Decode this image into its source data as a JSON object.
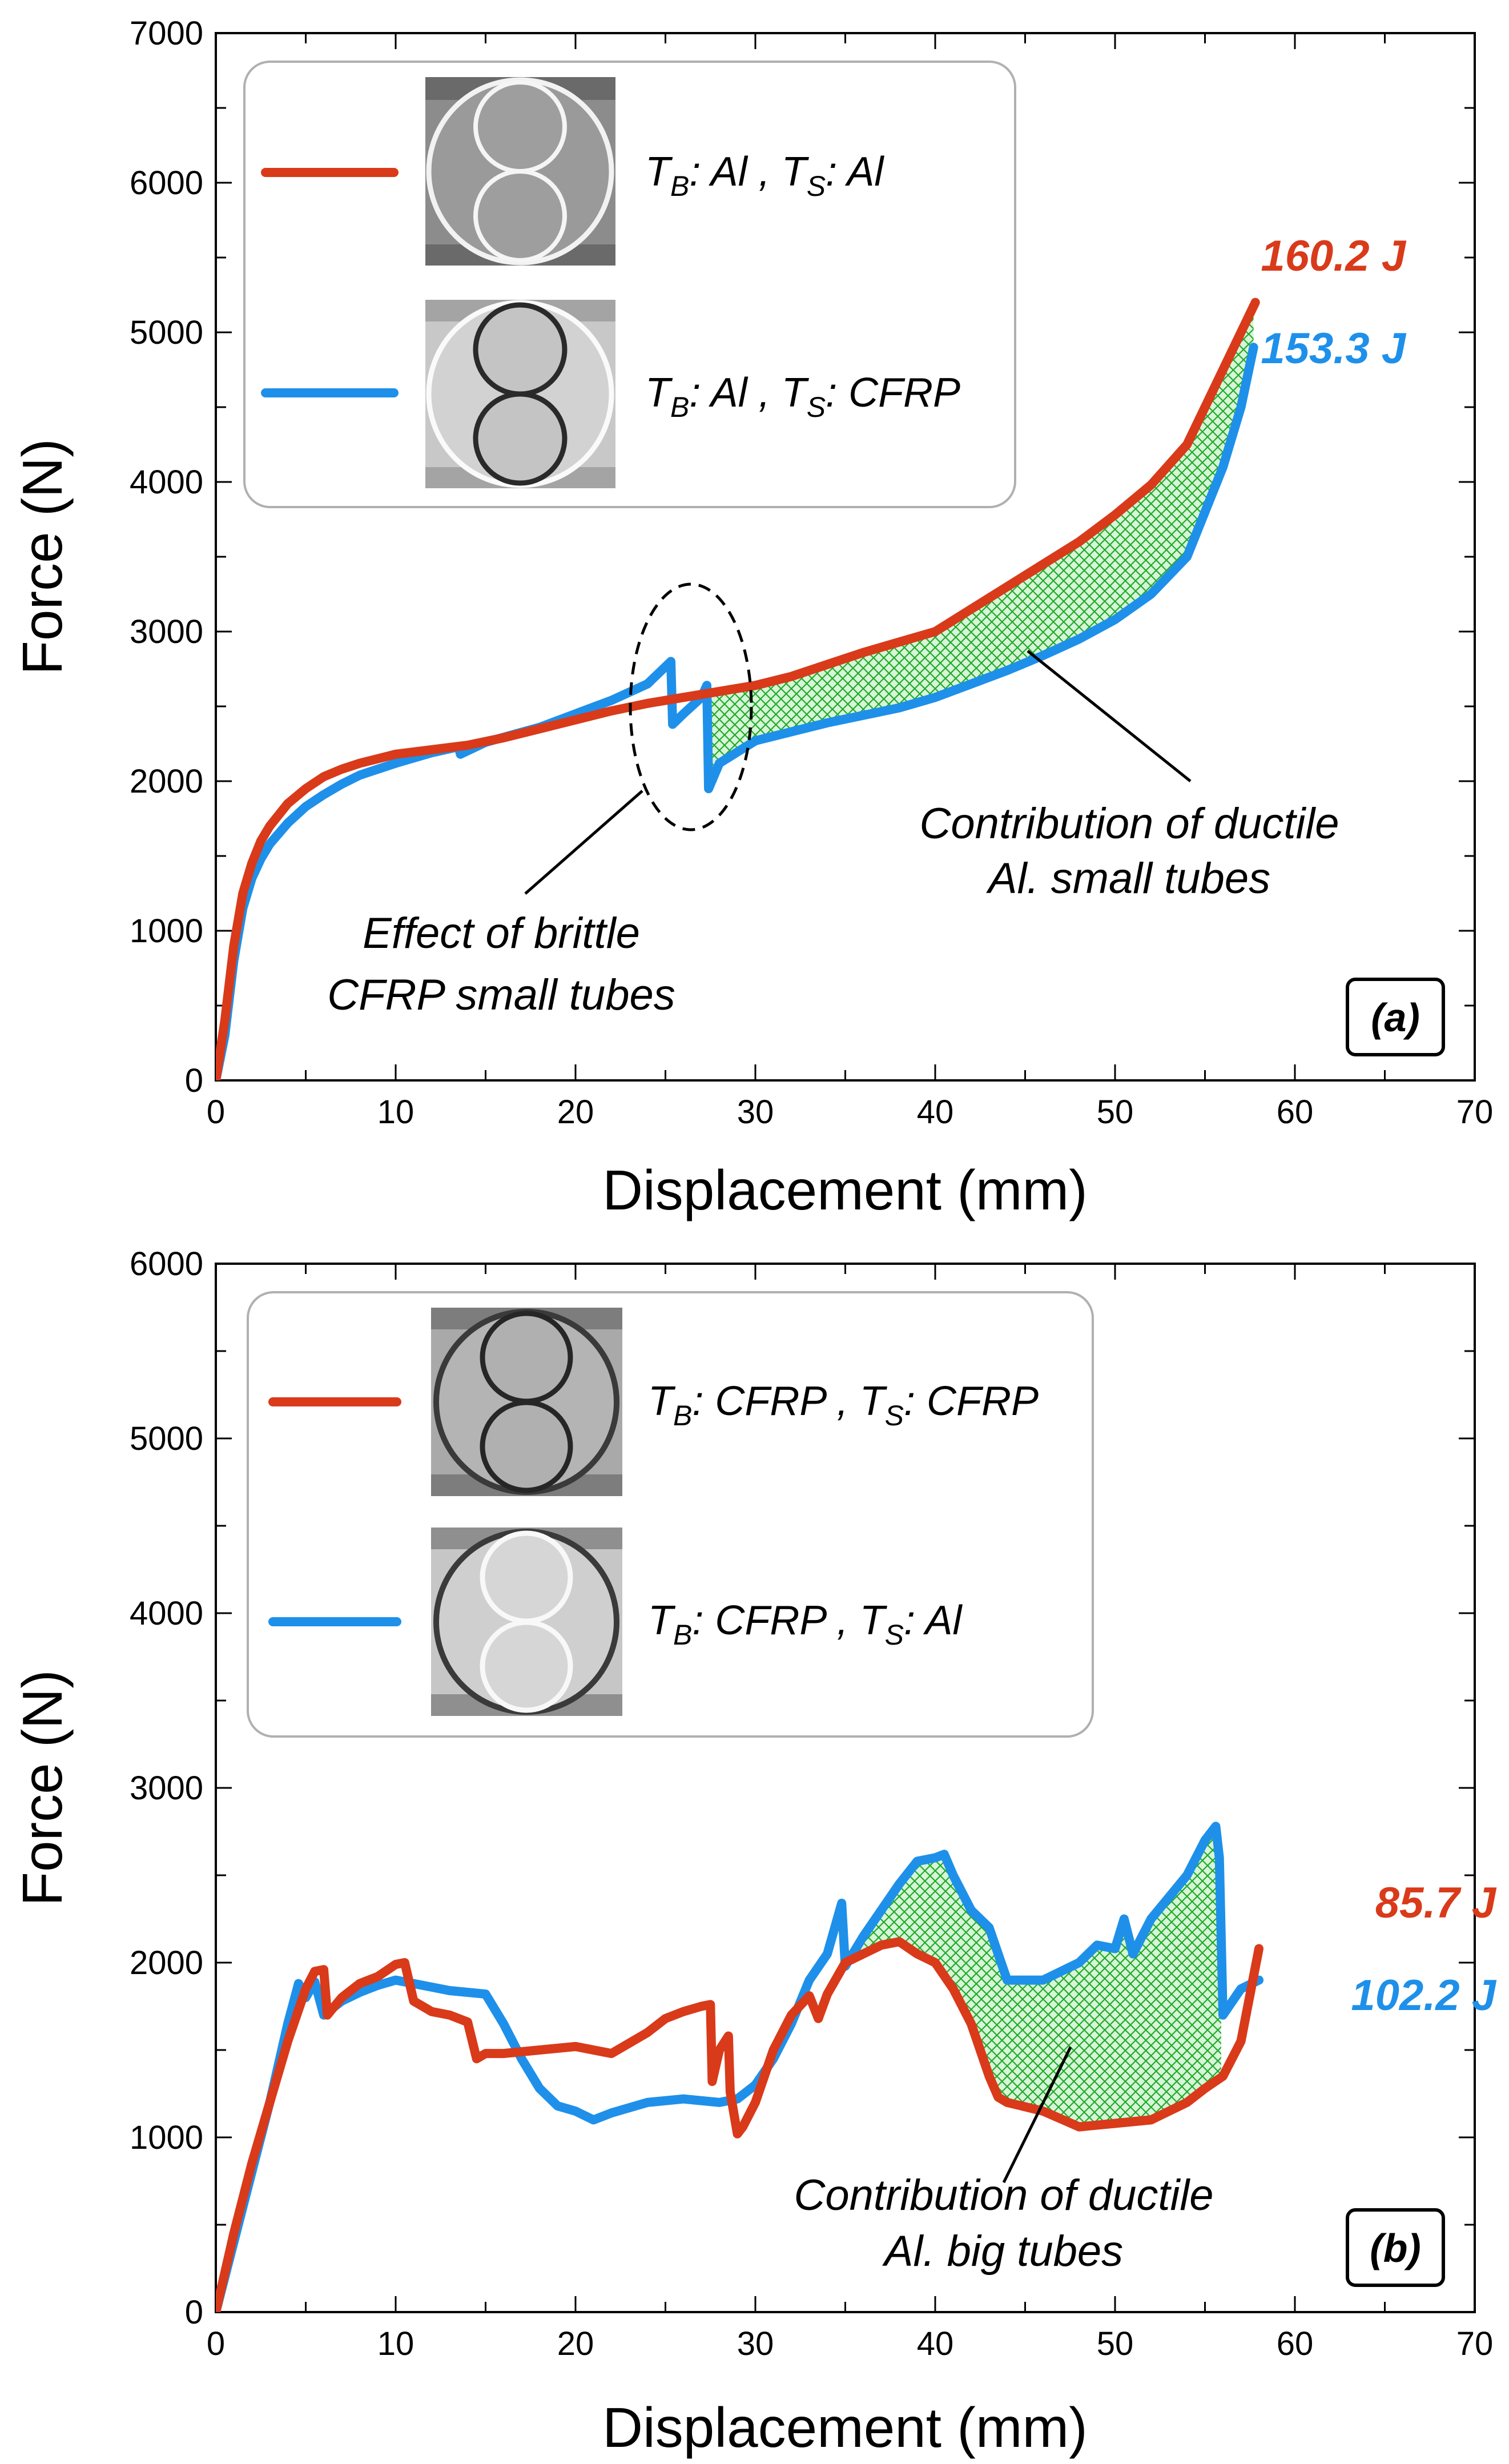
{
  "chart_data": [
    {
      "type": "line",
      "panel_label": "(a)",
      "xlabel": "Displacement (mm)",
      "ylabel": "Force (N)",
      "xlim": [
        0,
        70
      ],
      "ylim": [
        0,
        7000
      ],
      "xticks": [
        0,
        10,
        20,
        30,
        40,
        50,
        60,
        70
      ],
      "yticks": [
        0,
        1000,
        2000,
        3000,
        4000,
        5000,
        6000,
        7000
      ],
      "legend": {
        "placement": "top-left",
        "entries": [
          {
            "series": "TB_Al_TS_Al",
            "label_parts": {
              "t1": "T",
              "s1": "B",
              "m1": ": Al , T",
              "s2": "S",
              "m2": ": Al"
            }
          },
          {
            "series": "TB_Al_TS_CFRP",
            "label_parts": {
              "t1": "T",
              "s1": "B",
              "m1": ": Al , T",
              "s2": "S",
              "m2": ": CFRP"
            }
          }
        ]
      },
      "series": [
        {
          "name": "TB_Al_TS_Al",
          "color": "#d93a1a",
          "energy_label": "160.2 J",
          "x": [
            0,
            0.5,
            1,
            1.5,
            2,
            2.5,
            3,
            4,
            5,
            6,
            7,
            8,
            9,
            10,
            12,
            14,
            16,
            18,
            20,
            22,
            24,
            26,
            28,
            30,
            32,
            34,
            36,
            38,
            40,
            42,
            44,
            46,
            48,
            50,
            52,
            54,
            55,
            56,
            57,
            57.8
          ],
          "values": [
            0,
            400,
            900,
            1250,
            1450,
            1600,
            1700,
            1850,
            1950,
            2030,
            2080,
            2120,
            2150,
            2180,
            2210,
            2240,
            2290,
            2350,
            2410,
            2470,
            2520,
            2560,
            2600,
            2640,
            2700,
            2780,
            2860,
            2930,
            3000,
            3150,
            3300,
            3450,
            3600,
            3780,
            3980,
            4250,
            4500,
            4750,
            5000,
            5200
          ]
        },
        {
          "name": "TB_Al_TS_CFRP",
          "color": "#1e90ea",
          "energy_label": "153.3 J",
          "x": [
            0,
            0.5,
            1,
            1.5,
            2,
            2.5,
            3,
            4,
            5,
            6,
            7,
            8,
            10,
            12,
            13.5,
            13.6,
            15,
            18,
            20,
            22,
            24,
            25.3,
            25.4,
            26,
            27,
            27.3,
            27.4,
            28,
            30,
            32,
            34,
            36,
            38,
            40,
            42,
            44,
            46,
            48,
            50,
            52,
            54,
            55,
            56,
            57,
            57.7
          ],
          "values": [
            0,
            300,
            800,
            1150,
            1350,
            1480,
            1580,
            1720,
            1830,
            1910,
            1980,
            2040,
            2120,
            2190,
            2230,
            2180,
            2260,
            2360,
            2450,
            2540,
            2650,
            2800,
            2380,
            2450,
            2560,
            2640,
            1950,
            2120,
            2270,
            2330,
            2390,
            2440,
            2490,
            2560,
            2650,
            2740,
            2840,
            2950,
            3080,
            3250,
            3500,
            3800,
            4100,
            4500,
            4900
          ]
        }
      ],
      "annotations": [
        {
          "lines": [
            "Effect of brittle",
            "CFRP small tubes"
          ]
        },
        {
          "lines": [
            "Contribution of ductile",
            "Al. small tubes"
          ]
        }
      ]
    },
    {
      "type": "line",
      "panel_label": "(b)",
      "xlabel": "Displacement (mm)",
      "ylabel": "Force (N)",
      "xlim": [
        0,
        70
      ],
      "ylim": [
        0,
        6000
      ],
      "xticks": [
        0,
        10,
        20,
        30,
        40,
        50,
        60,
        70
      ],
      "yticks": [
        0,
        1000,
        2000,
        3000,
        4000,
        5000,
        6000
      ],
      "legend": {
        "placement": "top-left",
        "entries": [
          {
            "series": "TB_CFRP_TS_CFRP",
            "label_parts": {
              "t1": "T",
              "s1": "B",
              "m1": ": CFRP , T",
              "s2": "S",
              "m2": ": CFRP"
            }
          },
          {
            "series": "TB_CFRP_TS_Al",
            "label_parts": {
              "t1": "T",
              "s1": "B",
              "m1": ": CFRP , T",
              "s2": "S",
              "m2": ": Al"
            }
          }
        ]
      },
      "series": [
        {
          "name": "TB_CFRP_TS_CFRP",
          "color": "#d93a1a",
          "energy_label": "85.7 J",
          "x": [
            0,
            1,
            2,
            3,
            4,
            5,
            5.5,
            6,
            6.2,
            7,
            8,
            9,
            10,
            10.5,
            11,
            12,
            13,
            14,
            14.5,
            15,
            16,
            18,
            20,
            22,
            24,
            25,
            26,
            27,
            27.5,
            27.6,
            28,
            28.5,
            28.6,
            29,
            29.3,
            30,
            31,
            32,
            33,
            33.5,
            34,
            35,
            36,
            37,
            38,
            39,
            40,
            41,
            42,
            43,
            43.5,
            44,
            46,
            48,
            50,
            52,
            54,
            55,
            56,
            57,
            58
          ],
          "values": [
            0,
            450,
            850,
            1200,
            1550,
            1850,
            1950,
            1960,
            1700,
            1800,
            1880,
            1920,
            1990,
            2000,
            1780,
            1720,
            1700,
            1660,
            1450,
            1480,
            1480,
            1500,
            1520,
            1480,
            1600,
            1680,
            1720,
            1750,
            1760,
            1320,
            1500,
            1580,
            1260,
            1020,
            1060,
            1200,
            1500,
            1700,
            1810,
            1680,
            1820,
            2000,
            2050,
            2100,
            2120,
            2050,
            2000,
            1850,
            1650,
            1350,
            1230,
            1200,
            1150,
            1060,
            1080,
            1100,
            1200,
            1280,
            1350,
            1550,
            2080
          ]
        },
        {
          "name": "TB_CFRP_TS_Al",
          "color": "#1e90ea",
          "energy_label": "102.2 J",
          "x": [
            0,
            1,
            2,
            3,
            4,
            4.6,
            5,
            5.5,
            6,
            7,
            8,
            9,
            10,
            11,
            12,
            13,
            14,
            15,
            16,
            17,
            18,
            19,
            20,
            21,
            22,
            24,
            26,
            28,
            29,
            30,
            31,
            32,
            33,
            34,
            34.8,
            35,
            36,
            38,
            39,
            40,
            40.5,
            41,
            42,
            43,
            44,
            46,
            48,
            49,
            50,
            50.5,
            51,
            52,
            54,
            55,
            55.6,
            55.8,
            56,
            57,
            58
          ],
          "values": [
            0,
            400,
            800,
            1200,
            1650,
            1880,
            1800,
            1890,
            1700,
            1780,
            1830,
            1870,
            1900,
            1880,
            1860,
            1840,
            1830,
            1820,
            1650,
            1450,
            1280,
            1180,
            1150,
            1100,
            1140,
            1200,
            1220,
            1200,
            1220,
            1300,
            1450,
            1650,
            1900,
            2050,
            2340,
            1980,
            2150,
            2450,
            2580,
            2600,
            2620,
            2500,
            2300,
            2200,
            1900,
            1900,
            2000,
            2100,
            2080,
            2250,
            2050,
            2250,
            2500,
            2700,
            2780,
            2600,
            1700,
            1850,
            1900
          ]
        }
      ],
      "annotations": [
        {
          "lines": [
            "Contribution of ductile",
            "Al. big tubes"
          ]
        }
      ]
    }
  ]
}
